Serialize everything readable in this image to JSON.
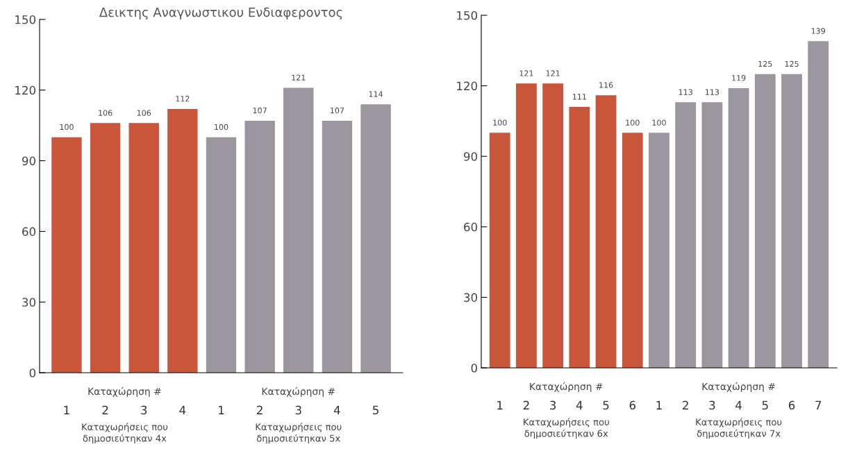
{
  "chart_data": [
    {
      "type": "bar",
      "title": "Δεικτης Αναγνωστικου Ενδιαφεροντος",
      "categories": [
        "1",
        "2",
        "3",
        "4",
        "1",
        "2",
        "3",
        "4",
        "5"
      ],
      "values": [
        100,
        106,
        106,
        112,
        100,
        107,
        121,
        107,
        114
      ],
      "colors": [
        "#c9553a",
        "#c9553a",
        "#c9553a",
        "#c9553a",
        "#9b959d",
        "#9b959d",
        "#9b959d",
        "#9b959d",
        "#9b959d"
      ],
      "ylim": [
        0,
        150
      ],
      "yticks": [
        0,
        30,
        60,
        90,
        120,
        150
      ],
      "grid": false,
      "data_labels": true,
      "annotations": [
        "Καταχώρηση #",
        "Καταχώρηση #",
        "Καταχωρήσεις που\nδημοσιεύτηκαν 4x",
        "Καταχωρήσεις που\nδημοσιεύτηκαν 5x"
      ]
    },
    {
      "type": "bar",
      "categories": [
        "1",
        "2",
        "3",
        "4",
        "5",
        "6",
        "1",
        "2",
        "3",
        "4",
        "5",
        "6",
        "7"
      ],
      "values": [
        100,
        121,
        121,
        111,
        116,
        100,
        100,
        113,
        113,
        119,
        125,
        125,
        139
      ],
      "colors": [
        "#c9553a",
        "#c9553a",
        "#c9553a",
        "#c9553a",
        "#c9553a",
        "#c9553a",
        "#9b959d",
        "#9b959d",
        "#9b959d",
        "#9b959d",
        "#9b959d",
        "#9b959d",
        "#9b959d"
      ],
      "ylim": [
        0,
        150
      ],
      "yticks": [
        0,
        30,
        60,
        90,
        120,
        150
      ],
      "grid": false,
      "data_labels": true,
      "annotations": [
        "Καταχώρηση #",
        "Καταχώρηση #",
        "Καταχωρήσεις που\nδημοσιεύτηκαν 6x",
        "Καταχωρήσεις που\nδημοσιεύτηκαν 7x"
      ]
    }
  ]
}
